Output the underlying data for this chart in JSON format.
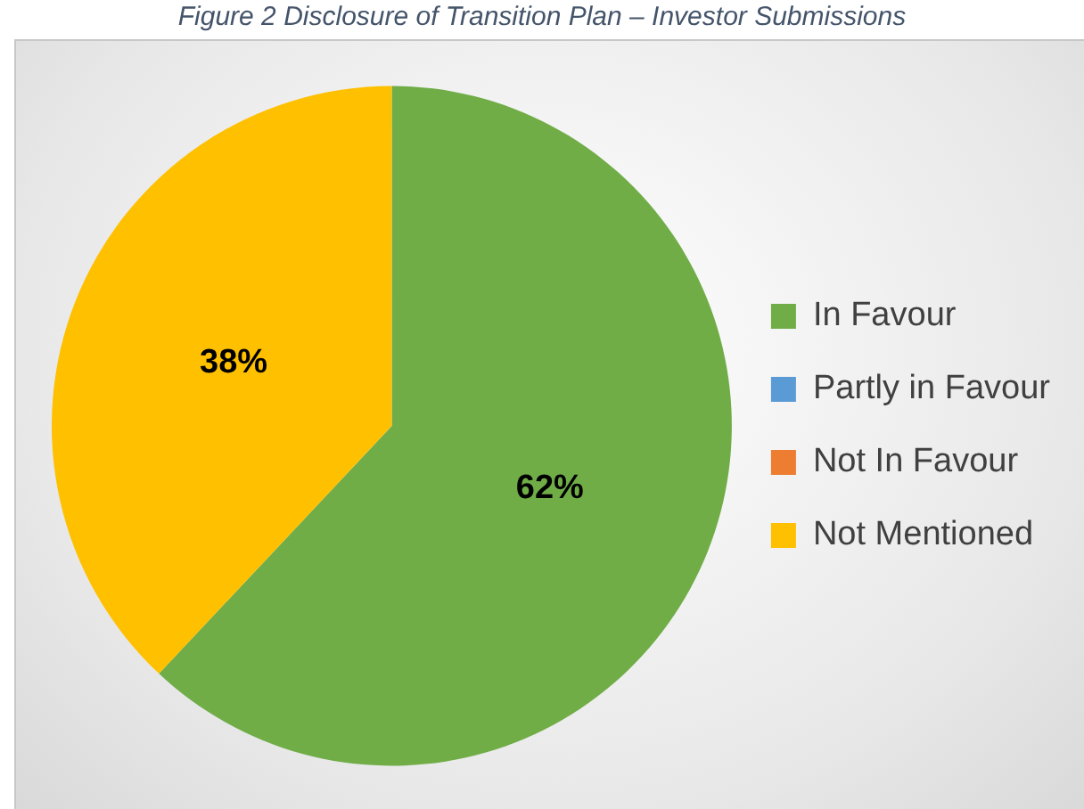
{
  "chart_data": {
    "type": "pie",
    "title": "Figure 2 Disclosure of Transition Plan – Investor Submissions",
    "categories": [
      "In Favour",
      "Partly in Favour",
      "Not In Favour",
      "Not Mentioned"
    ],
    "values": [
      62,
      0,
      0,
      38
    ],
    "colors": [
      "#70ad47",
      "#5b9bd5",
      "#ed7d31",
      "#ffc000"
    ],
    "value_labels": [
      "62%",
      null,
      null,
      "38%"
    ],
    "legend": "right"
  }
}
